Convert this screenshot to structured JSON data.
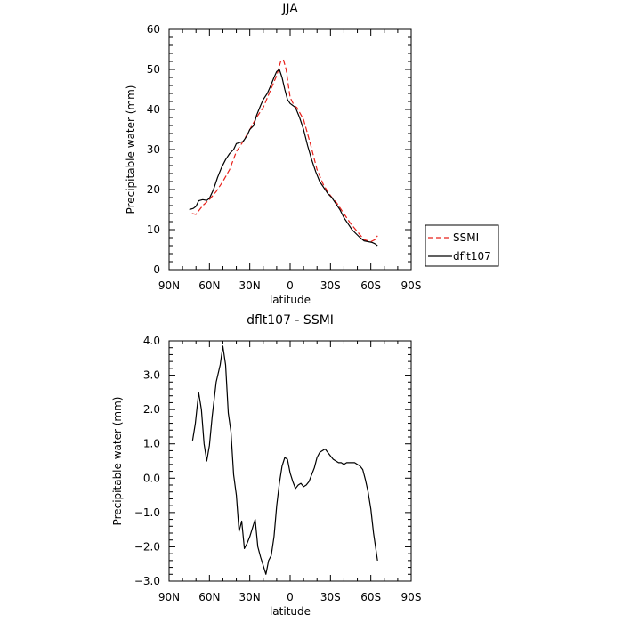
{
  "chart_data": [
    {
      "type": "line",
      "title": "JJA",
      "xlabel": "latitude",
      "ylabel": "Precipitable water (mm)",
      "xlim": [
        90,
        -90
      ],
      "ylim": [
        0,
        60
      ],
      "x_ticks": [
        90,
        60,
        30,
        0,
        -30,
        -60,
        -90
      ],
      "x_tick_labels": [
        "90N",
        "60N",
        "30N",
        "0",
        "30S",
        "60S",
        "90S"
      ],
      "y_ticks": [
        0,
        10,
        20,
        30,
        40,
        50,
        60
      ],
      "y_tick_labels": [
        "0",
        "10",
        "20",
        "30",
        "40",
        "50",
        "60"
      ],
      "legend": {
        "placement": "outside-right"
      },
      "series": [
        {
          "name": "SSMI",
          "color": "#e8201a",
          "dash": "dashed",
          "x": [
            73,
            70,
            65,
            60,
            55,
            50,
            45,
            40,
            35,
            30,
            25,
            20,
            15,
            10,
            7,
            5,
            3,
            0,
            -3,
            -5,
            -10,
            -15,
            -20,
            -25,
            -30,
            -35,
            -40,
            -45,
            -50,
            -55,
            -60,
            -63,
            -65
          ],
          "y": [
            14,
            13.8,
            16,
            17.5,
            19.5,
            22,
            25,
            29.5,
            32,
            35,
            38,
            40.5,
            44.5,
            48.5,
            52,
            52.5,
            50,
            43,
            41,
            40.5,
            37.5,
            31.5,
            25,
            21,
            18.5,
            16.5,
            14,
            11.5,
            9.5,
            7.5,
            7,
            7.5,
            8.5
          ]
        },
        {
          "name": "dflt107",
          "color": "#000000",
          "dash": "solid",
          "x": [
            75,
            72,
            70,
            68,
            65,
            62,
            60,
            57,
            54,
            51,
            48,
            45,
            42,
            40,
            37,
            35,
            32,
            30,
            27,
            25,
            22,
            20,
            17,
            15,
            12,
            10,
            8,
            6,
            4,
            2,
            0,
            -2,
            -4,
            -7,
            -10,
            -13,
            -16,
            -19,
            -22,
            -25,
            -28,
            -31,
            -34,
            -37,
            -40,
            -43,
            -46,
            -49,
            -52,
            -55,
            -58,
            -61,
            -63,
            -65
          ],
          "y": [
            15,
            15.3,
            15.8,
            17.2,
            17.5,
            17.3,
            17.8,
            20,
            23,
            25.5,
            27.5,
            29,
            30,
            31.5,
            31.8,
            32,
            33.5,
            35,
            36,
            38.5,
            41,
            42.5,
            44,
            45.5,
            48,
            49.5,
            50,
            48,
            45,
            42.5,
            41.5,
            41,
            40.5,
            38,
            35,
            31,
            27.5,
            24.5,
            22,
            20.5,
            19,
            18,
            16.5,
            15,
            13,
            11.5,
            10,
            9,
            8,
            7.2,
            7,
            6.8,
            6.5,
            6
          ]
        }
      ]
    },
    {
      "type": "line",
      "title": "dflt107 - SSMI",
      "xlabel": "latitude",
      "ylabel": "Precipitable water (mm)",
      "xlim": [
        90,
        -90
      ],
      "ylim": [
        -3,
        4
      ],
      "x_ticks": [
        90,
        60,
        30,
        0,
        -30,
        -60,
        -90
      ],
      "x_tick_labels": [
        "90N",
        "60N",
        "30N",
        "0",
        "30S",
        "60S",
        "90S"
      ],
      "y_ticks": [
        -3,
        -2,
        -1,
        0,
        1,
        2,
        3,
        4
      ],
      "y_tick_labels": [
        "−3.0",
        "−2.0",
        "−1.0",
        "0.0",
        "1.0",
        "2.0",
        "3.0",
        "4.0"
      ],
      "series": [
        {
          "color": "#000000",
          "dash": "solid",
          "x": [
            72.5,
            70.5,
            68,
            66,
            64,
            62,
            60,
            58,
            55,
            52,
            50,
            48,
            46,
            44,
            42,
            40,
            38,
            36,
            34,
            32,
            30,
            28,
            26,
            24,
            22,
            20,
            18,
            16,
            14,
            12,
            10,
            8,
            6,
            4,
            2,
            0,
            -2,
            -4,
            -6,
            -8,
            -10,
            -12,
            -14,
            -16,
            -18,
            -20,
            -22,
            -24,
            -26,
            -28,
            -30,
            -32,
            -34,
            -36,
            -38,
            -40,
            -42,
            -44,
            -46,
            -48,
            -50,
            -52,
            -54,
            -56,
            -58,
            -60,
            -62,
            -65
          ],
          "y": [
            1.1,
            1.6,
            2.5,
            2.0,
            1.0,
            0.5,
            0.95,
            1.8,
            2.8,
            3.3,
            3.85,
            3.3,
            1.9,
            1.35,
            0.1,
            -0.5,
            -1.55,
            -1.25,
            -2.05,
            -1.9,
            -1.7,
            -1.45,
            -1.2,
            -2.0,
            -2.3,
            -2.55,
            -2.8,
            -2.4,
            -2.25,
            -1.7,
            -0.8,
            -0.15,
            0.35,
            0.6,
            0.55,
            0.15,
            -0.1,
            -0.3,
            -0.2,
            -0.15,
            -0.25,
            -0.2,
            -0.1,
            0.1,
            0.3,
            0.6,
            0.75,
            0.8,
            0.85,
            0.75,
            0.65,
            0.55,
            0.5,
            0.45,
            0.45,
            0.4,
            0.45,
            0.45,
            0.45,
            0.45,
            0.4,
            0.35,
            0.25,
            -0.05,
            -0.4,
            -0.9,
            -1.6,
            -2.4
          ]
        }
      ]
    }
  ]
}
